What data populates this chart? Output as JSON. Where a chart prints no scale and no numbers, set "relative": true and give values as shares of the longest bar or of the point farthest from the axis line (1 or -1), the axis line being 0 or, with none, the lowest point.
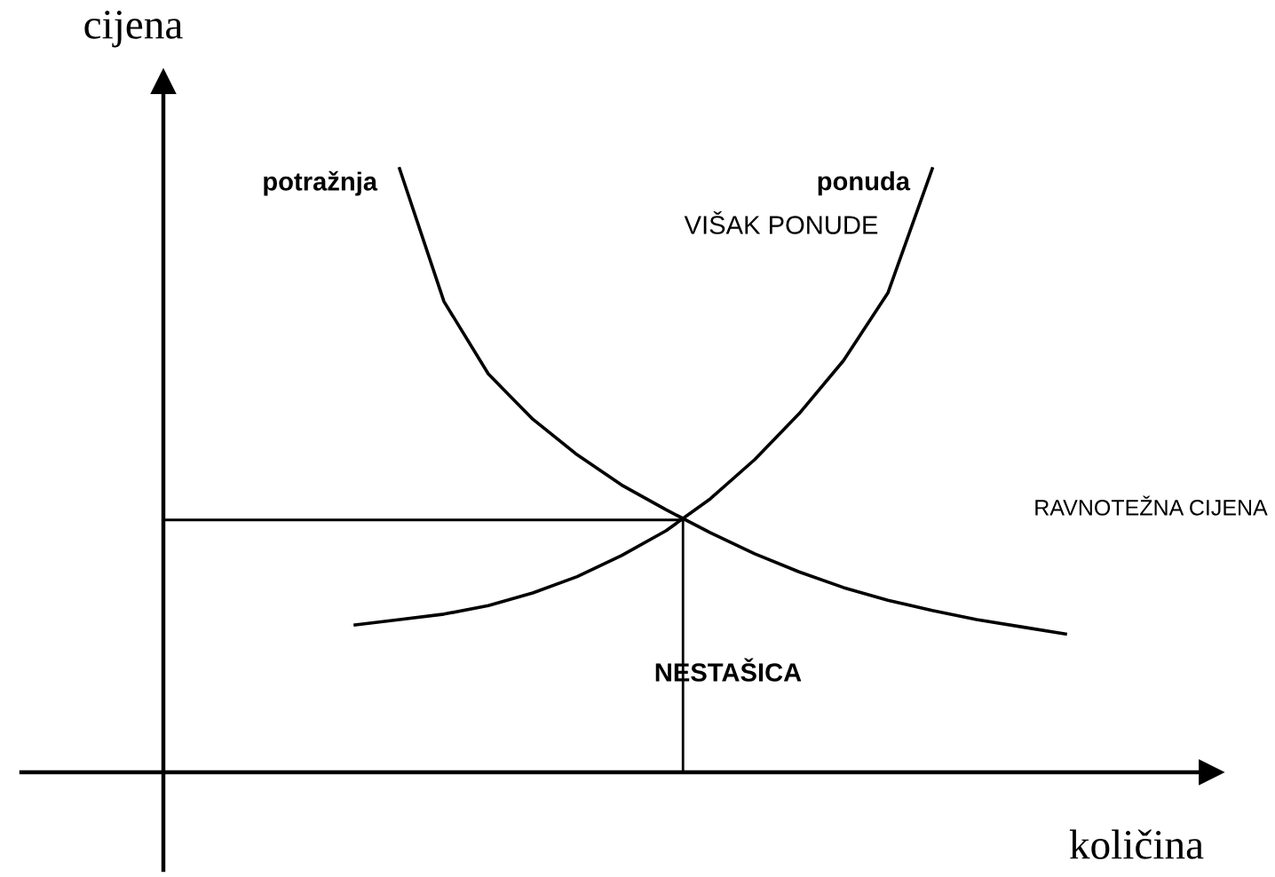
{
  "chart_data": {
    "type": "line",
    "relative": true,
    "xlabel": "količina",
    "ylabel": "cijena",
    "categories": [
      null,
      null,
      null,
      null,
      null,
      null,
      null,
      null,
      null,
      null,
      null,
      null,
      null,
      null,
      null,
      null,
      null
    ],
    "series": [
      {
        "name": "potražnja",
        "color": "#000000",
        "values": [
          null,
          1.0,
          0.78,
          0.66,
          0.585,
          0.526,
          0.476,
          0.435,
          0.397,
          0.362,
          0.332,
          0.306,
          0.285,
          0.268,
          0.253,
          0.241,
          0.229
        ]
      },
      {
        "name": "ponuda",
        "color": "#000000",
        "values": [
          0.244,
          0.253,
          0.262,
          0.276,
          0.297,
          0.324,
          0.359,
          0.4,
          0.453,
          0.518,
          0.594,
          0.682,
          0.794,
          1.0,
          null,
          null,
          null
        ]
      }
    ],
    "ref_lines": [
      {
        "axis": "y",
        "value": 0.418
      }
    ],
    "annotations": [
      "VIŠAK PONUDE",
      "NESTAŠICA",
      "RAVNOTEŽNA CIJENA"
    ],
    "legend": false,
    "tick_labels": false,
    "marker": "none",
    "line_style": "solid"
  }
}
